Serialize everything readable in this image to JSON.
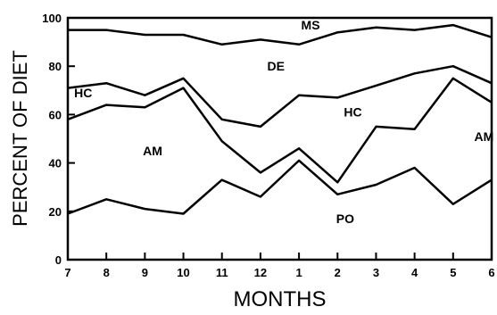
{
  "chart_data": {
    "type": "area",
    "title": "",
    "xlabel": "MONTHS",
    "ylabel": "PERCENT OF DIET",
    "categories": [
      "7",
      "8",
      "9",
      "10",
      "11",
      "12",
      "1",
      "2",
      "3",
      "4",
      "5",
      "6"
    ],
    "ylim": [
      0,
      100
    ],
    "yticks": [
      "0",
      "20",
      "40",
      "60",
      "80",
      "100"
    ],
    "grid": false,
    "boundaries": [
      {
        "name": "PO/AM",
        "values": [
          19,
          25,
          21,
          19,
          33,
          26,
          41,
          27,
          31,
          38,
          23,
          33
        ]
      },
      {
        "name": "AM/HC",
        "values": [
          58,
          64,
          63,
          71,
          49,
          36,
          46,
          32,
          55,
          54,
          75,
          65
        ]
      },
      {
        "name": "HC/DE",
        "values": [
          71,
          73,
          68,
          75,
          58,
          55,
          68,
          67,
          72,
          77,
          80,
          73
        ]
      },
      {
        "name": "DE/MS",
        "values": [
          95,
          95,
          93,
          93,
          89,
          91,
          89,
          94,
          96,
          95,
          97,
          92
        ]
      }
    ],
    "region_labels": [
      {
        "text": "MS",
        "x": 6.3,
        "y": 97
      },
      {
        "text": "DE",
        "x": 5.4,
        "y": 80
      },
      {
        "text": "HC",
        "x": 0.4,
        "y": 69
      },
      {
        "text": "HC",
        "x": 7.4,
        "y": 61
      },
      {
        "text": "AM",
        "x": 2.2,
        "y": 45
      },
      {
        "text": "AM",
        "x": 10.8,
        "y": 51
      },
      {
        "text": "PO",
        "x": 7.2,
        "y": 17
      }
    ]
  }
}
